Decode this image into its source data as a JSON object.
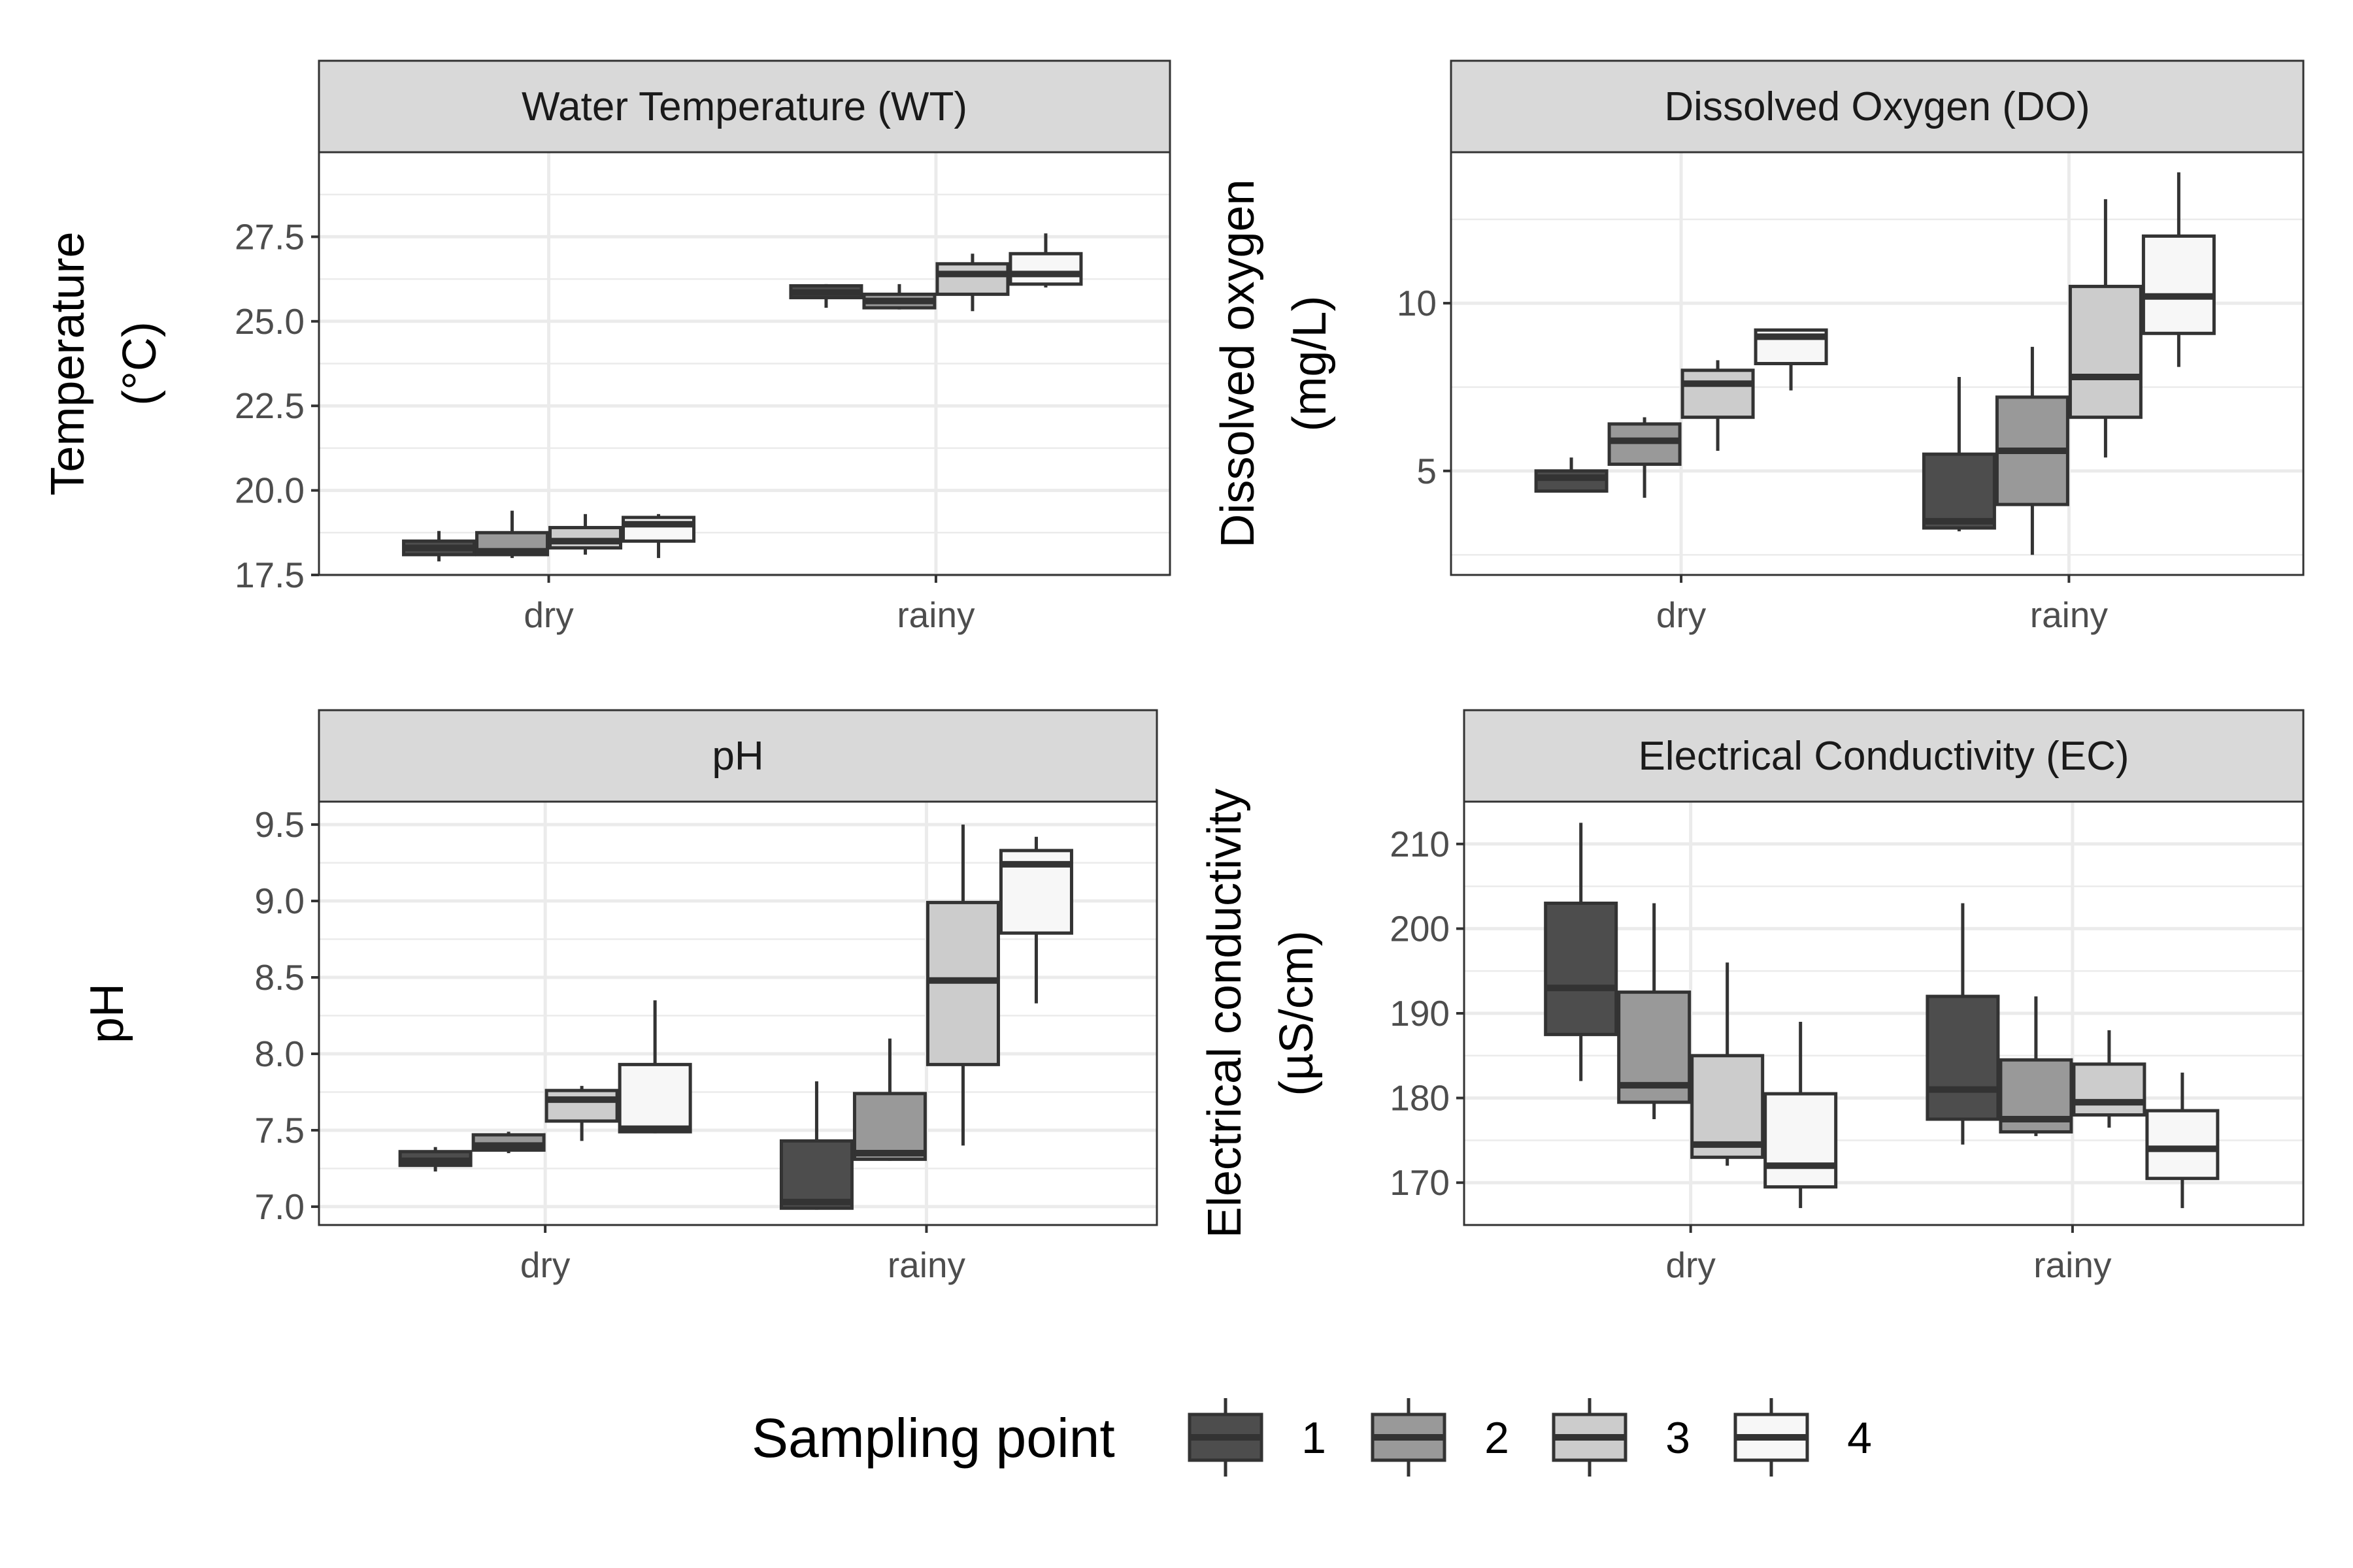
{
  "colors": {
    "fill_1": "#4d4d4d",
    "fill_2": "#999999",
    "fill_3": "#cccccc",
    "fill_4": "#f7f7f7",
    "strip": "#d9d9d9",
    "panel_border": "#333333",
    "grid": "#ebebeb"
  },
  "legend": {
    "title": "Sampling point",
    "placement": "bottom",
    "keys": [
      "1",
      "2",
      "3",
      "4"
    ]
  },
  "chart_data": [
    {
      "type": "boxplot",
      "strip": "Water Temperature (WT)",
      "ylabel": [
        "Temperature",
        "(°C)"
      ],
      "categories": [
        "dry",
        "rainy"
      ],
      "ylim": [
        17.5,
        30
      ],
      "yticks": [
        "17.5",
        "20.0",
        "22.5",
        "25.0",
        "27.5"
      ],
      "series": [
        {
          "name": "1",
          "boxes": [
            {
              "min": 17.9,
              "q1": 18.1,
              "median": 18.3,
              "q3": 18.5,
              "max": 18.8
            },
            {
              "min": 25.4,
              "q1": 25.7,
              "median": 25.85,
              "q3": 26.05,
              "max": 26.1
            }
          ]
        },
        {
          "name": "2",
          "boxes": [
            {
              "min": 18.0,
              "q1": 18.1,
              "median": 18.2,
              "q3": 18.75,
              "max": 19.4
            },
            {
              "min": 25.35,
              "q1": 25.4,
              "median": 25.6,
              "q3": 25.8,
              "max": 26.1
            }
          ]
        },
        {
          "name": "3",
          "boxes": [
            {
              "min": 18.1,
              "q1": 18.3,
              "median": 18.5,
              "q3": 18.9,
              "max": 19.3
            },
            {
              "min": 25.3,
              "q1": 25.8,
              "median": 26.4,
              "q3": 26.7,
              "max": 27.0
            }
          ]
        },
        {
          "name": "4",
          "boxes": [
            {
              "min": 18.0,
              "q1": 18.5,
              "median": 19.0,
              "q3": 19.2,
              "max": 19.3
            },
            {
              "min": 26.0,
              "q1": 26.1,
              "median": 26.4,
              "q3": 27.0,
              "max": 27.6
            }
          ]
        }
      ]
    },
    {
      "type": "boxplot",
      "strip": "Dissolved Oxygen (DO)",
      "ylabel": [
        "Dissolved oxygen",
        "(mg/L)"
      ],
      "categories": [
        "dry",
        "rainy"
      ],
      "ylim": [
        1.9,
        14.5
      ],
      "yticks": [
        "5",
        "10"
      ],
      "series": [
        {
          "name": "1",
          "boxes": [
            {
              "min": 4.4,
              "q1": 4.4,
              "median": 4.8,
              "q3": 5.0,
              "max": 5.4
            },
            {
              "min": 3.2,
              "q1": 3.3,
              "median": 3.5,
              "q3": 5.5,
              "max": 7.8
            }
          ]
        },
        {
          "name": "2",
          "boxes": [
            {
              "min": 4.2,
              "q1": 5.2,
              "median": 5.9,
              "q3": 6.4,
              "max": 6.6
            },
            {
              "min": 2.5,
              "q1": 4.0,
              "median": 5.6,
              "q3": 7.2,
              "max": 8.7
            }
          ]
        },
        {
          "name": "3",
          "boxes": [
            {
              "min": 5.6,
              "q1": 6.6,
              "median": 7.6,
              "q3": 8.0,
              "max": 8.3
            },
            {
              "min": 5.4,
              "q1": 6.6,
              "median": 7.8,
              "q3": 10.5,
              "max": 13.1
            }
          ]
        },
        {
          "name": "4",
          "boxes": [
            {
              "min": 7.4,
              "q1": 8.2,
              "median": 9.0,
              "q3": 9.2,
              "max": 9.2
            },
            {
              "min": 8.1,
              "q1": 9.1,
              "median": 10.2,
              "q3": 12.0,
              "max": 13.9
            }
          ]
        }
      ]
    },
    {
      "type": "boxplot",
      "strip": "pH",
      "ylabel": [
        "pH"
      ],
      "categories": [
        "dry",
        "rainy"
      ],
      "ylim": [
        6.88,
        9.65
      ],
      "yticks": [
        "7.0",
        "7.5",
        "8.0",
        "8.5",
        "9.0",
        "9.5"
      ],
      "series": [
        {
          "name": "1",
          "boxes": [
            {
              "min": 7.23,
              "q1": 7.27,
              "median": 7.3,
              "q3": 7.36,
              "max": 7.39
            },
            {
              "min": 6.98,
              "q1": 6.99,
              "median": 7.03,
              "q3": 7.43,
              "max": 7.82
            }
          ]
        },
        {
          "name": "2",
          "boxes": [
            {
              "min": 7.35,
              "q1": 7.37,
              "median": 7.4,
              "q3": 7.47,
              "max": 7.49
            },
            {
              "min": 7.3,
              "q1": 7.31,
              "median": 7.35,
              "q3": 7.74,
              "max": 8.1
            }
          ]
        },
        {
          "name": "3",
          "boxes": [
            {
              "min": 7.43,
              "q1": 7.56,
              "median": 7.7,
              "q3": 7.76,
              "max": 7.79
            },
            {
              "min": 7.4,
              "q1": 7.93,
              "median": 8.48,
              "q3": 8.99,
              "max": 9.5
            }
          ]
        },
        {
          "name": "4",
          "boxes": [
            {
              "min": 7.48,
              "q1": 7.49,
              "median": 7.51,
              "q3": 7.93,
              "max": 8.35
            },
            {
              "min": 8.33,
              "q1": 8.79,
              "median": 9.24,
              "q3": 9.33,
              "max": 9.42
            }
          ]
        }
      ]
    },
    {
      "type": "boxplot",
      "strip": "Electrical Conductivity (EC)",
      "ylabel": [
        "Electrical conductivity",
        "(µS/cm)"
      ],
      "categories": [
        "dry",
        "rainy"
      ],
      "ylim": [
        165,
        215
      ],
      "yticks": [
        "170",
        "180",
        "190",
        "200",
        "210"
      ],
      "series": [
        {
          "name": "1",
          "boxes": [
            {
              "min": 182,
              "q1": 187.5,
              "median": 193,
              "q3": 203,
              "max": 212.5
            },
            {
              "min": 174.5,
              "q1": 177.5,
              "median": 181,
              "q3": 192,
              "max": 203
            }
          ]
        },
        {
          "name": "2",
          "boxes": [
            {
              "min": 177.5,
              "q1": 179.5,
              "median": 181.5,
              "q3": 192.5,
              "max": 203
            },
            {
              "min": 175.5,
              "q1": 176,
              "median": 177.5,
              "q3": 184.5,
              "max": 192
            }
          ]
        },
        {
          "name": "3",
          "boxes": [
            {
              "min": 172,
              "q1": 173,
              "median": 174.5,
              "q3": 185,
              "max": 196
            },
            {
              "min": 176.5,
              "q1": 178,
              "median": 179.5,
              "q3": 184,
              "max": 188
            }
          ]
        },
        {
          "name": "4",
          "boxes": [
            {
              "min": 167,
              "q1": 169.5,
              "median": 172,
              "q3": 180.5,
              "max": 189
            },
            {
              "min": 167,
              "q1": 170.5,
              "median": 174,
              "q3": 178.5,
              "max": 183
            }
          ]
        }
      ]
    }
  ]
}
